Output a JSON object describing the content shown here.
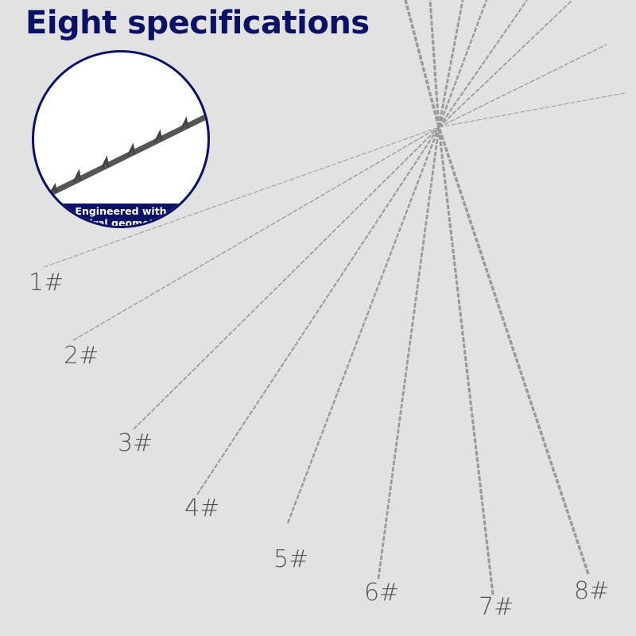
{
  "title": "Eight specifications",
  "inset": {
    "caption_line1": "Engineered with",
    "caption_line2": "spiral geometry"
  },
  "specs": [
    "1#",
    "2#",
    "3#",
    "4#",
    "5#",
    "6#",
    "7#",
    "8#"
  ],
  "colors": {
    "title": "#0b1266",
    "background": "#e2e2e2",
    "blade": "#9a9a9a"
  }
}
